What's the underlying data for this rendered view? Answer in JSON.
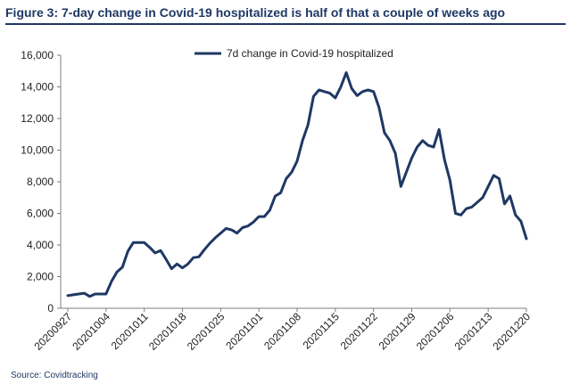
{
  "title": "Figure 3: 7-day change in Covid-19 hospitalized is half of that a couple of weeks ago",
  "source": "Source: Covidtracking",
  "colors": {
    "line": "#1f3864",
    "title": "#1f3864",
    "axis": "#7f7f7f"
  },
  "chart_data": {
    "type": "line",
    "title": "Figure 3: 7-day change in Covid-19 hospitalized is half of that a couple of weeks ago",
    "xlabel": "",
    "ylabel": "",
    "ylim": [
      0,
      16000
    ],
    "yticks": [
      0,
      2000,
      4000,
      6000,
      8000,
      10000,
      12000,
      14000,
      16000
    ],
    "ytick_labels": [
      "0",
      "2,000",
      "4,000",
      "6,000",
      "8,000",
      "10,000",
      "12,000",
      "14,000",
      "16,000"
    ],
    "xticks": [
      "20200927",
      "20201004",
      "20201011",
      "20201018",
      "20201025",
      "20201101",
      "20201108",
      "20201115",
      "20201122",
      "20201129",
      "20201206",
      "20201213",
      "20201220"
    ],
    "grid": false,
    "legend": "top-center",
    "series": [
      {
        "name": "7d change in Covid-19 hospitalized",
        "x": [
          "20200927",
          "20200928",
          "20200929",
          "20200930",
          "20201001",
          "20201002",
          "20201003",
          "20201004",
          "20201005",
          "20201006",
          "20201007",
          "20201008",
          "20201009",
          "20201010",
          "20201011",
          "20201012",
          "20201013",
          "20201014",
          "20201015",
          "20201016",
          "20201017",
          "20201018",
          "20201019",
          "20201020",
          "20201021",
          "20201022",
          "20201023",
          "20201024",
          "20201025",
          "20201026",
          "20201027",
          "20201028",
          "20201029",
          "20201030",
          "20201031",
          "20201101",
          "20201102",
          "20201103",
          "20201104",
          "20201105",
          "20201106",
          "20201107",
          "20201108",
          "20201109",
          "20201110",
          "20201111",
          "20201112",
          "20201113",
          "20201114",
          "20201115",
          "20201116",
          "20201117",
          "20201118",
          "20201119",
          "20201120",
          "20201121",
          "20201122",
          "20201123",
          "20201124",
          "20201125",
          "20201126",
          "20201127",
          "20201128",
          "20201129",
          "20201130",
          "20201201",
          "20201202",
          "20201203",
          "20201204",
          "20201205",
          "20201206",
          "20201207",
          "20201208",
          "20201209",
          "20201210",
          "20201211",
          "20201212",
          "20201213",
          "20201214",
          "20201215",
          "20201216",
          "20201217",
          "20201218",
          "20201219",
          "20201220"
        ],
        "values": [
          800,
          850,
          900,
          950,
          750,
          900,
          900,
          900,
          1700,
          2300,
          2600,
          3600,
          4150,
          4150,
          4150,
          3850,
          3500,
          3650,
          3100,
          2500,
          2800,
          2550,
          2800,
          3200,
          3250,
          3700,
          4100,
          4450,
          4750,
          5050,
          4950,
          4750,
          5100,
          5200,
          5450,
          5800,
          5800,
          6200,
          7100,
          7300,
          8200,
          8600,
          9300,
          10600,
          11600,
          13400,
          13800,
          13700,
          13600,
          13300,
          14000,
          14900,
          13900,
          13450,
          13700,
          13800,
          13700,
          12700,
          11100,
          10600,
          9800,
          7700,
          8600,
          9500,
          10200,
          10600,
          10300,
          10200,
          11300,
          9400,
          8100,
          6000,
          5900,
          6300,
          6400,
          6700,
          7000,
          7700,
          8400,
          8200,
          6600,
          7100,
          5900,
          5500,
          4400
        ]
      }
    ]
  }
}
